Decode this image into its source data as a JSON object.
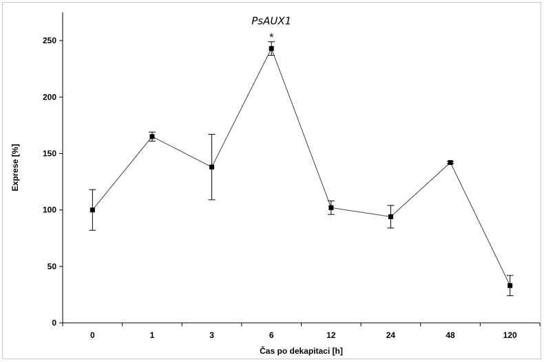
{
  "chart_data": {
    "type": "line",
    "title": "PsAUX1",
    "xlabel": "Čas po dekapitaci [h]",
    "ylabel": "Exprese [%]",
    "categories": [
      "0",
      "1",
      "3",
      "6",
      "12",
      "24",
      "48",
      "120"
    ],
    "series": [
      {
        "values": [
          100,
          165,
          138,
          243,
          102,
          94,
          142,
          33
        ],
        "error": [
          18,
          4,
          29,
          6,
          6,
          10,
          1,
          9
        ],
        "color": "#000000"
      }
    ],
    "ylim": [
      0,
      275
    ],
    "yticks": [
      0,
      50,
      100,
      150,
      200,
      250
    ],
    "grid": false,
    "annotations": [
      {
        "text": "*",
        "category": "6"
      }
    ]
  }
}
